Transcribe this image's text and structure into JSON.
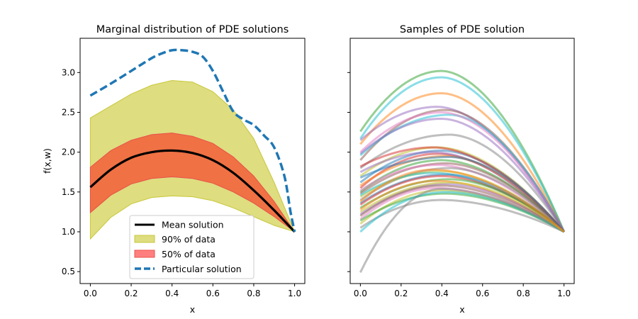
{
  "figure": {
    "left_title": "Marginal distribution of PDE solutions",
    "right_title": "Samples of PDE solution"
  },
  "chart_data": [
    {
      "type": "line",
      "title": "Marginal distribution of PDE solutions",
      "xlabel": "x",
      "ylabel": "f(x,w)",
      "xlim": [
        -0.05,
        1.05
      ],
      "ylim": [
        0.35,
        3.43
      ],
      "xticks": [
        0.0,
        0.2,
        0.4,
        0.6,
        0.8,
        1.0
      ],
      "xtick_labels": [
        "0.0",
        "0.2",
        "0.4",
        "0.6",
        "0.8",
        "1.0"
      ],
      "yticks": [
        0.5,
        1.0,
        1.5,
        2.0,
        2.5,
        3.0
      ],
      "ytick_labels": [
        "0.5",
        "1.0",
        "1.5",
        "2.0",
        "2.5",
        "3.0"
      ],
      "grid": false,
      "x": [
        0.0,
        0.1,
        0.2,
        0.3,
        0.4,
        0.5,
        0.6,
        0.7,
        0.8,
        0.9,
        1.0
      ],
      "mean": [
        1.56,
        1.78,
        1.93,
        2.0,
        2.02,
        1.99,
        1.9,
        1.74,
        1.52,
        1.27,
        1.0
      ],
      "band90_lower": [
        0.91,
        1.18,
        1.35,
        1.43,
        1.45,
        1.44,
        1.39,
        1.3,
        1.19,
        1.08,
        1.0
      ],
      "band90_upper": [
        2.43,
        2.58,
        2.73,
        2.84,
        2.9,
        2.88,
        2.76,
        2.53,
        2.17,
        1.62,
        1.0
      ],
      "band50_lower": [
        1.24,
        1.46,
        1.6,
        1.67,
        1.69,
        1.67,
        1.61,
        1.5,
        1.36,
        1.19,
        1.0
      ],
      "band50_upper": [
        1.81,
        2.02,
        2.15,
        2.22,
        2.24,
        2.2,
        2.11,
        1.94,
        1.7,
        1.38,
        1.0
      ],
      "particular_x": [
        0.0,
        0.1,
        0.2,
        0.3,
        0.35,
        0.4,
        0.45,
        0.5,
        0.55,
        0.6,
        0.65,
        0.7,
        0.75,
        0.8,
        0.85,
        0.9,
        0.95,
        0.98,
        1.0
      ],
      "particular_y": [
        2.71,
        2.86,
        3.02,
        3.18,
        3.24,
        3.28,
        3.28,
        3.26,
        3.2,
        3.02,
        2.76,
        2.51,
        2.41,
        2.34,
        2.21,
        2.06,
        1.7,
        1.25,
        1.0
      ],
      "legend": {
        "placement": "lower center",
        "entries": [
          {
            "label": "Mean solution",
            "kind": "line",
            "color": "#000000"
          },
          {
            "label": "90% of data",
            "kind": "patch",
            "color": "#bcbd22"
          },
          {
            "label": "50% of data",
            "kind": "patch",
            "color": "#ff3030"
          },
          {
            "label": "Particular solution",
            "kind": "dashed",
            "color": "#1f77b4"
          }
        ]
      },
      "colors": {
        "mean": "#000000",
        "band90_fill": "#dedd7f",
        "band90_edge": "#c8c73c",
        "band50_fill": "#f07144",
        "band50_edge": "#e8504a",
        "particular": "#1f77b4"
      }
    },
    {
      "type": "line",
      "title": "Samples of PDE solution",
      "xlabel": "x",
      "xlim": [
        -0.05,
        1.05
      ],
      "ylim": [
        0.35,
        3.43
      ],
      "xticks": [
        0.0,
        0.2,
        0.4,
        0.6,
        0.8,
        1.0
      ],
      "xtick_labels": [
        "0.0",
        "0.2",
        "0.4",
        "0.6",
        "0.8",
        "1.0"
      ],
      "yticks": [
        0.5,
        1.0,
        1.5,
        2.0,
        2.5,
        3.0
      ],
      "grid": false,
      "shared_y": true,
      "series_note": "approximately 40 sample curves from x=0 to x=1, all converging to 1.0 at x=1",
      "line_alpha": 0.5,
      "samples": [
        {
          "color": "#2ca02c",
          "y0": 2.26,
          "peak": 3.02,
          "peak_x": 0.4,
          "end": 1.0
        },
        {
          "color": "#17becf",
          "y0": 2.17,
          "peak": 2.94,
          "peak_x": 0.4,
          "end": 1.0
        },
        {
          "color": "#ff7f0e",
          "y0": 2.1,
          "peak": 2.74,
          "peak_x": 0.4,
          "end": 1.0
        },
        {
          "color": "#9467bd",
          "y0": 2.15,
          "peak": 2.57,
          "peak_x": 0.38,
          "end": 1.0
        },
        {
          "color": "#8c564b",
          "y0": 1.9,
          "peak": 2.53,
          "peak_x": 0.42,
          "end": 1.0
        },
        {
          "color": "#17becf",
          "y0": 1.96,
          "peak": 2.47,
          "peak_x": 0.44,
          "end": 1.0
        },
        {
          "color": "#e377c2",
          "y0": 2.0,
          "peak": 2.5,
          "peak_x": 0.4,
          "end": 1.0
        },
        {
          "color": "#9467bd",
          "y0": 1.98,
          "peak": 2.42,
          "peak_x": 0.4,
          "end": 1.0
        },
        {
          "color": "#7f7f7f",
          "y0": 1.8,
          "peak": 2.22,
          "peak_x": 0.44,
          "end": 1.0
        },
        {
          "color": "#bcbd22",
          "y0": 1.7,
          "peak": 2.06,
          "peak_x": 0.38,
          "end": 1.0
        },
        {
          "color": "#1f77b4",
          "y0": 1.62,
          "peak": 2.02,
          "peak_x": 0.4,
          "end": 1.0
        },
        {
          "color": "#d62728",
          "y0": 1.55,
          "peak": 1.98,
          "peak_x": 0.38,
          "end": 1.0
        },
        {
          "color": "#9467bd",
          "y0": 1.75,
          "peak": 2.0,
          "peak_x": 0.36,
          "end": 1.0
        },
        {
          "color": "#ff7f0e",
          "y0": 1.58,
          "peak": 1.95,
          "peak_x": 0.42,
          "end": 1.0
        },
        {
          "color": "#2ca02c",
          "y0": 1.5,
          "peak": 1.9,
          "peak_x": 0.4,
          "end": 1.0
        },
        {
          "color": "#8c564b",
          "y0": 1.48,
          "peak": 1.86,
          "peak_x": 0.42,
          "end": 1.0
        },
        {
          "color": "#e377c2",
          "y0": 1.52,
          "peak": 1.84,
          "peak_x": 0.38,
          "end": 1.0
        },
        {
          "color": "#7f7f7f",
          "y0": 1.4,
          "peak": 1.8,
          "peak_x": 0.44,
          "end": 1.0
        },
        {
          "color": "#bcbd22",
          "y0": 1.44,
          "peak": 1.76,
          "peak_x": 0.4,
          "end": 1.0
        },
        {
          "color": "#17becf",
          "y0": 1.46,
          "peak": 1.74,
          "peak_x": 0.36,
          "end": 1.0
        },
        {
          "color": "#1f77b4",
          "y0": 1.36,
          "peak": 1.72,
          "peak_x": 0.42,
          "end": 1.0
        },
        {
          "color": "#d62728",
          "y0": 1.34,
          "peak": 1.7,
          "peak_x": 0.4,
          "end": 1.0
        },
        {
          "color": "#2ca02c",
          "y0": 1.3,
          "peak": 1.66,
          "peak_x": 0.44,
          "end": 1.0
        },
        {
          "color": "#ff7f0e",
          "y0": 1.28,
          "peak": 1.64,
          "peak_x": 0.38,
          "end": 1.0
        },
        {
          "color": "#9467bd",
          "y0": 1.22,
          "peak": 1.6,
          "peak_x": 0.42,
          "end": 1.0
        },
        {
          "color": "#8c564b",
          "y0": 1.2,
          "peak": 1.58,
          "peak_x": 0.4,
          "end": 1.0
        },
        {
          "color": "#e377c2",
          "y0": 1.16,
          "peak": 1.55,
          "peak_x": 0.38,
          "end": 1.0
        },
        {
          "color": "#bcbd22",
          "y0": 1.1,
          "peak": 1.52,
          "peak_x": 0.4,
          "end": 1.0
        },
        {
          "color": "#2ca02c",
          "y0": 1.14,
          "peak": 1.48,
          "peak_x": 0.42,
          "end": 1.0
        },
        {
          "color": "#7f7f7f",
          "y0": 1.05,
          "peak": 1.4,
          "peak_x": 0.4,
          "end": 1.0
        },
        {
          "color": "#17becf",
          "y0": 1.0,
          "peak": 1.5,
          "peak_x": 0.42,
          "end": 1.0
        },
        {
          "color": "#7f7f7f",
          "y0": 0.49,
          "peak": 1.54,
          "peak_x": 0.4,
          "end": 1.0
        },
        {
          "color": "#d62728",
          "y0": 1.82,
          "peak": 2.06,
          "peak_x": 0.36,
          "end": 1.0
        },
        {
          "color": "#1f77b4",
          "y0": 1.68,
          "peak": 1.94,
          "peak_x": 0.44,
          "end": 1.0
        },
        {
          "color": "#bcbd22",
          "y0": 1.25,
          "peak": 1.62,
          "peak_x": 0.44,
          "end": 1.0
        },
        {
          "color": "#ff7f0e",
          "y0": 1.38,
          "peak": 1.78,
          "peak_x": 0.36,
          "end": 1.0
        }
      ]
    }
  ]
}
